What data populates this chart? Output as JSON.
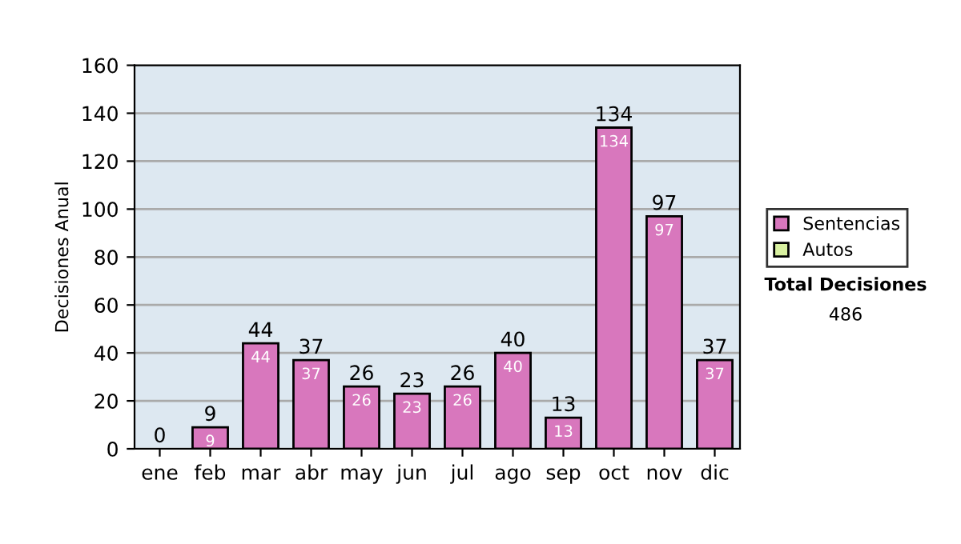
{
  "chart_data": {
    "type": "bar",
    "ylabel": "Decisiones Anual",
    "categories": [
      "ene",
      "feb",
      "mar",
      "abr",
      "may",
      "jun",
      "jul",
      "ago",
      "sep",
      "oct",
      "nov",
      "dic"
    ],
    "series": [
      {
        "name": "Sentencias",
        "color": "#d877bd",
        "values": [
          0,
          9,
          44,
          37,
          26,
          23,
          26,
          40,
          13,
          134,
          97,
          37
        ],
        "value_labels": [
          null,
          "9",
          "44",
          "37",
          "26",
          "23",
          "26",
          "40",
          "13",
          "134",
          "97",
          "37"
        ]
      },
      {
        "name": "Autos",
        "color": "#d8f0a0",
        "values": [
          0,
          0,
          0,
          0,
          0,
          0,
          0,
          0,
          0,
          0,
          0,
          0
        ]
      }
    ],
    "stacked": true,
    "totals": [
      "0",
      "9",
      "44",
      "37",
      "26",
      "23",
      "26",
      "40",
      "13",
      "134",
      "97",
      "37"
    ],
    "ylim": [
      0,
      160
    ],
    "yticks": [
      0,
      20,
      40,
      60,
      80,
      100,
      120,
      140,
      160
    ],
    "grid": "y",
    "legend": "right",
    "annotations": [
      "Total Decisiones",
      "486"
    ]
  }
}
